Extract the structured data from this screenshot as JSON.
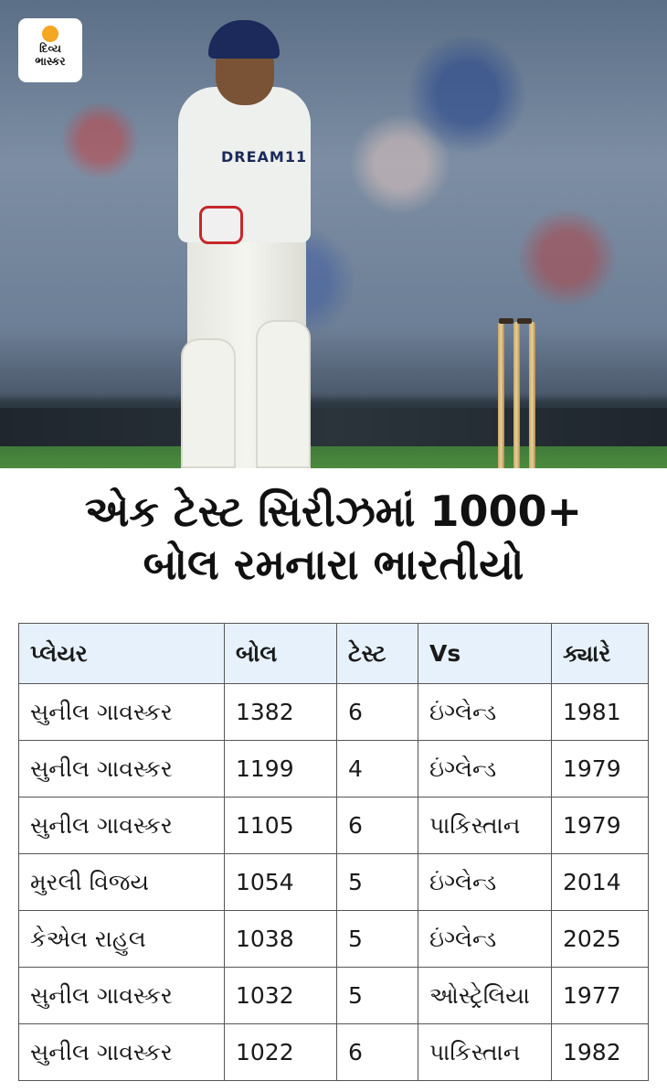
{
  "logo": {
    "line1": "દિવ્ય",
    "line2": "ભાસ્કર",
    "accent": "#f5a623"
  },
  "photo": {
    "sponsor": "DREAM11"
  },
  "title": {
    "line1": "એક ટેસ્ટ સિરીઝમાં 1000+",
    "line2": "બોલ રમનારા ભારતીયો"
  },
  "table": {
    "header_bg": "#e6f1fb",
    "headers": [
      "પ્લેયર",
      "બોલ",
      "ટેસ્ટ",
      "Vs",
      "ક્યારે"
    ],
    "rows": [
      [
        "સુનીલ ગાવસ્કર",
        "1382",
        "6",
        "ઇંગ્લેન્ડ",
        "1981"
      ],
      [
        "સુનીલ ગાવસ્કર",
        "1199",
        "4",
        "ઇંગ્લેન્ડ",
        "1979"
      ],
      [
        "સુનીલ ગાવસ્કર",
        "1105",
        "6",
        "પાકિસ્તાન",
        "1979"
      ],
      [
        "મુરલી વિજય",
        "1054",
        "5",
        "ઇંગ્લેન્ડ",
        "2014"
      ],
      [
        "કેએલ રાહુલ",
        "1038",
        "5",
        "ઇંગ્લેન્ડ",
        "2025"
      ],
      [
        "સુનીલ ગાવસ્કર",
        "1032",
        "5",
        "ઓસ્ટ્રેલિયા",
        "1977"
      ],
      [
        "સુનીલ ગાવસ્કર",
        "1022",
        "6",
        "પાકિસ્તાન",
        "1982"
      ]
    ]
  }
}
